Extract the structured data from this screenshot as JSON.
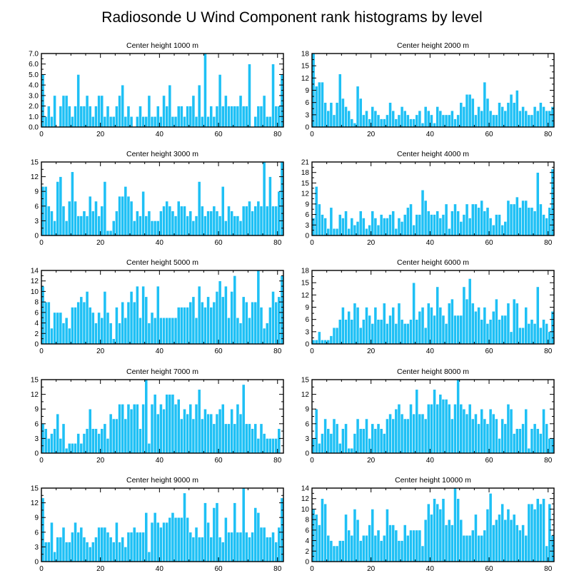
{
  "title": "Radiosonde U Wind Component rank histograms by level",
  "colors": {
    "bar": "#1ec0f5",
    "frame": "#000000"
  },
  "chart_data": [
    {
      "type": "bar",
      "title": "Center height 1000 m",
      "xlim": [
        0,
        82
      ],
      "ylim": [
        0,
        7
      ],
      "xticks": [
        0,
        20,
        40,
        60,
        80
      ],
      "yticks": [
        0,
        1,
        2,
        3,
        4,
        5,
        6,
        7
      ],
      "yticklabels": [
        "0.0",
        "1.0",
        "2.0",
        "3.0",
        "4.0",
        "5.0",
        "6.0",
        "7.0"
      ],
      "values": [
        5,
        1,
        2,
        1,
        3,
        0,
        2,
        3,
        3,
        2,
        1,
        2,
        5,
        2,
        2,
        3,
        2,
        1,
        2,
        3,
        3,
        1,
        2,
        1,
        1,
        2,
        3,
        4,
        1,
        2,
        1,
        0,
        1,
        2,
        1,
        1,
        3,
        1,
        1,
        2,
        1,
        3,
        2,
        4,
        1,
        1,
        2,
        2,
        1,
        2,
        2,
        3,
        1,
        4,
        1,
        7,
        1,
        2,
        1,
        2,
        5,
        2,
        3,
        2,
        2,
        2,
        2,
        3,
        2,
        2,
        6,
        0,
        1,
        2,
        2,
        3,
        1,
        1,
        6,
        2,
        2,
        5
      ]
    },
    {
      "type": "bar",
      "title": "Center height 2000 m",
      "xlim": [
        0,
        82
      ],
      "ylim": [
        0,
        18
      ],
      "xticks": [
        0,
        20,
        40,
        60,
        80
      ],
      "yticks": [
        0,
        3,
        6,
        9,
        12,
        15,
        18
      ],
      "yticklabels": [
        "0",
        "3",
        "6",
        "9",
        "12",
        "15",
        "18"
      ],
      "values": [
        18,
        10,
        11,
        11,
        6,
        4,
        6,
        3,
        6,
        13,
        7,
        5,
        4,
        2,
        1,
        10,
        7,
        3,
        4,
        2,
        5,
        4,
        3,
        2,
        2,
        3,
        6,
        4,
        2,
        3,
        5,
        4,
        3,
        2,
        2,
        3,
        4,
        1,
        5,
        4,
        3,
        1,
        5,
        4,
        3,
        3,
        3,
        4,
        2,
        3,
        6,
        5,
        8,
        8,
        7,
        3,
        5,
        4,
        11,
        7,
        4,
        3,
        3,
        6,
        5,
        4,
        6,
        8,
        6,
        9,
        4,
        5,
        4,
        3,
        3,
        5,
        4,
        6,
        5,
        4,
        4,
        5
      ]
    },
    {
      "type": "bar",
      "title": "Center height 3000 m",
      "xlim": [
        0,
        82
      ],
      "ylim": [
        0,
        15
      ],
      "xticks": [
        0,
        20,
        40,
        60,
        80
      ],
      "yticks": [
        0,
        3,
        6,
        9,
        12,
        15
      ],
      "yticklabels": [
        "0",
        "3",
        "6",
        "9",
        "12",
        "15"
      ],
      "values": [
        10,
        10,
        6,
        5,
        3,
        11,
        12,
        6,
        3,
        7,
        13,
        7,
        4,
        4,
        5,
        4,
        8,
        5,
        7,
        4,
        6,
        11,
        1,
        1,
        3,
        5,
        8,
        8,
        10,
        8,
        7,
        3,
        5,
        4,
        9,
        4,
        5,
        3,
        3,
        3,
        5,
        6,
        7,
        6,
        5,
        4,
        7,
        6,
        6,
        4,
        5,
        3,
        4,
        11,
        6,
        4,
        5,
        5,
        6,
        5,
        4,
        10,
        3,
        6,
        5,
        4,
        4,
        3,
        6,
        6,
        7,
        5,
        6,
        7,
        6,
        15,
        6,
        12,
        6,
        6,
        9,
        15
      ]
    },
    {
      "type": "bar",
      "title": "Center height 4000 m",
      "xlim": [
        0,
        82
      ],
      "ylim": [
        0,
        21
      ],
      "xticks": [
        0,
        20,
        40,
        60,
        80
      ],
      "yticks": [
        0,
        3,
        6,
        9,
        12,
        15,
        18,
        21
      ],
      "yticklabels": [
        "0",
        "3",
        "6",
        "9",
        "12",
        "15",
        "18",
        "21"
      ],
      "values": [
        5,
        14,
        9,
        6,
        5,
        2,
        8,
        2,
        2,
        6,
        5,
        7,
        2,
        5,
        3,
        4,
        7,
        5,
        2,
        3,
        7,
        5,
        3,
        6,
        5,
        5,
        6,
        7,
        2,
        5,
        4,
        6,
        8,
        9,
        3,
        6,
        6,
        13,
        10,
        7,
        6,
        6,
        7,
        5,
        6,
        9,
        2,
        7,
        9,
        7,
        4,
        6,
        9,
        5,
        9,
        9,
        8,
        10,
        7,
        8,
        5,
        3,
        6,
        6,
        3,
        4,
        10,
        9,
        9,
        11,
        8,
        10,
        10,
        8,
        8,
        7,
        18,
        9,
        6,
        5,
        8,
        19
      ]
    },
    {
      "type": "bar",
      "title": "Center height 5000 m",
      "xlim": [
        0,
        82
      ],
      "ylim": [
        0,
        14
      ],
      "xticks": [
        0,
        20,
        40,
        60,
        80
      ],
      "yticks": [
        0,
        2,
        4,
        6,
        8,
        10,
        12,
        14
      ],
      "yticklabels": [
        "0",
        "2",
        "4",
        "6",
        "8",
        "10",
        "12",
        "14"
      ],
      "values": [
        11,
        8,
        8,
        3,
        6,
        6,
        6,
        4,
        5,
        3,
        7,
        7,
        8,
        9,
        8,
        10,
        7,
        6,
        4,
        6,
        5,
        10,
        6,
        4,
        1,
        7,
        4,
        8,
        5,
        8,
        10,
        8,
        11,
        5,
        11,
        9,
        4,
        6,
        5,
        11,
        5,
        5,
        5,
        5,
        5,
        5,
        7,
        7,
        7,
        7,
        8,
        9,
        5,
        11,
        8,
        7,
        9,
        7,
        8,
        10,
        12,
        9,
        11,
        5,
        10,
        13,
        5,
        4,
        9,
        8,
        5,
        8,
        8,
        14,
        7,
        3,
        4,
        7,
        10,
        8,
        9,
        13
      ]
    },
    {
      "type": "bar",
      "title": "Center height 6000 m",
      "xlim": [
        0,
        82
      ],
      "ylim": [
        0,
        18
      ],
      "xticks": [
        0,
        20,
        40,
        60,
        80
      ],
      "yticks": [
        0,
        3,
        6,
        9,
        12,
        15,
        18
      ],
      "yticklabels": [
        "0",
        "3",
        "6",
        "9",
        "12",
        "15",
        "18"
      ],
      "values": [
        1,
        1,
        3,
        1,
        1,
        1,
        2,
        4,
        4,
        6,
        9,
        6,
        8,
        6,
        10,
        9,
        4,
        6,
        9,
        7,
        5,
        9,
        6,
        6,
        10,
        5,
        7,
        9,
        5,
        10,
        6,
        5,
        5,
        6,
        15,
        6,
        8,
        9,
        4,
        10,
        9,
        7,
        14,
        9,
        7,
        5,
        10,
        11,
        7,
        7,
        7,
        14,
        11,
        16,
        10,
        8,
        9,
        6,
        9,
        5,
        6,
        8,
        11,
        6,
        7,
        7,
        10,
        3,
        11,
        10,
        4,
        4,
        9,
        5,
        6,
        5,
        14,
        4,
        6,
        5,
        3,
        8
      ]
    },
    {
      "type": "bar",
      "title": "Center height 7000 m",
      "xlim": [
        0,
        82
      ],
      "ylim": [
        0,
        15
      ],
      "xticks": [
        0,
        20,
        40,
        60,
        80
      ],
      "yticks": [
        0,
        3,
        6,
        9,
        12,
        15
      ],
      "yticklabels": [
        "0",
        "3",
        "6",
        "9",
        "12",
        "15"
      ],
      "values": [
        6,
        5,
        3,
        4,
        5,
        8,
        3,
        6,
        1,
        2,
        2,
        2,
        4,
        2,
        4,
        5,
        9,
        5,
        5,
        4,
        5,
        6,
        3,
        8,
        7,
        7,
        10,
        10,
        7,
        10,
        9,
        10,
        10,
        5,
        10,
        15,
        2,
        10,
        12,
        8,
        10,
        9,
        12,
        12,
        12,
        10,
        11,
        7,
        9,
        8,
        10,
        7,
        10,
        13,
        7,
        9,
        8,
        8,
        6,
        8,
        9,
        10,
        6,
        6,
        9,
        6,
        10,
        8,
        14,
        6,
        6,
        5,
        6,
        3,
        6,
        4,
        3,
        3,
        3,
        3,
        5,
        0
      ]
    },
    {
      "type": "bar",
      "title": "Center height 8000 m",
      "xlim": [
        0,
        82
      ],
      "ylim": [
        0,
        15
      ],
      "xticks": [
        0,
        20,
        40,
        60,
        80
      ],
      "yticks": [
        0,
        3,
        6,
        9,
        12,
        15
      ],
      "yticklabels": [
        "0",
        "3",
        "6",
        "9",
        "12",
        "15"
      ],
      "values": [
        3,
        9,
        2,
        4,
        7,
        5,
        4,
        7,
        6,
        2,
        5,
        6,
        1,
        1,
        4,
        7,
        5,
        5,
        7,
        3,
        6,
        5,
        6,
        5,
        4,
        7,
        8,
        7,
        9,
        10,
        8,
        7,
        7,
        10,
        8,
        13,
        8,
        8,
        7,
        10,
        10,
        13,
        10,
        12,
        11,
        11,
        10,
        7,
        10,
        15,
        10,
        9,
        8,
        10,
        7,
        8,
        6,
        9,
        7,
        6,
        9,
        8,
        7,
        3,
        7,
        6,
        10,
        9,
        4,
        5,
        5,
        6,
        9,
        1,
        5,
        6,
        5,
        4,
        9,
        6,
        3,
        3
      ]
    },
    {
      "type": "bar",
      "title": "Center height 9000 m",
      "xlim": [
        0,
        82
      ],
      "ylim": [
        0,
        15
      ],
      "xticks": [
        0,
        20,
        40,
        60,
        80
      ],
      "yticks": [
        0,
        3,
        6,
        9,
        12,
        15
      ],
      "yticklabels": [
        "0",
        "3",
        "6",
        "9",
        "12",
        "15"
      ],
      "values": [
        13,
        4,
        4,
        8,
        2,
        5,
        5,
        7,
        4,
        4,
        6,
        8,
        6,
        7,
        5,
        4,
        3,
        4,
        5,
        7,
        7,
        7,
        6,
        5,
        4,
        8,
        4,
        5,
        3,
        6,
        6,
        7,
        6,
        6,
        6,
        10,
        2,
        8,
        10,
        8,
        7,
        8,
        8,
        9,
        10,
        9,
        9,
        9,
        14,
        9,
        6,
        5,
        7,
        5,
        5,
        12,
        8,
        5,
        11,
        12,
        5,
        4,
        9,
        6,
        6,
        12,
        6,
        6,
        15,
        6,
        5,
        6,
        11,
        10,
        7,
        7,
        5,
        5,
        6,
        4,
        7,
        13
      ]
    },
    {
      "type": "bar",
      "title": "Center height 10000 m",
      "xlim": [
        0,
        82
      ],
      "ylim": [
        0,
        14
      ],
      "xticks": [
        0,
        20,
        40,
        60,
        80
      ],
      "yticks": [
        0,
        2,
        4,
        6,
        8,
        10,
        12,
        14
      ],
      "yticklabels": [
        "0",
        "2",
        "4",
        "6",
        "8",
        "10",
        "12",
        "14"
      ],
      "values": [
        10,
        9,
        7,
        12,
        11,
        5,
        4,
        3,
        3,
        4,
        4,
        9,
        6,
        5,
        10,
        8,
        4,
        5,
        5,
        7,
        10,
        5,
        6,
        4,
        5,
        10,
        7,
        7,
        6,
        4,
        4,
        7,
        5,
        6,
        6,
        6,
        6,
        3,
        8,
        11,
        9,
        12,
        11,
        10,
        12,
        7,
        8,
        7,
        14,
        12,
        8,
        5,
        5,
        5,
        6,
        9,
        5,
        5,
        6,
        10,
        13,
        7,
        8,
        9,
        11,
        8,
        10,
        8,
        9,
        7,
        6,
        7,
        5,
        11,
        11,
        10,
        12,
        11,
        12,
        3,
        11,
        5
      ]
    }
  ]
}
